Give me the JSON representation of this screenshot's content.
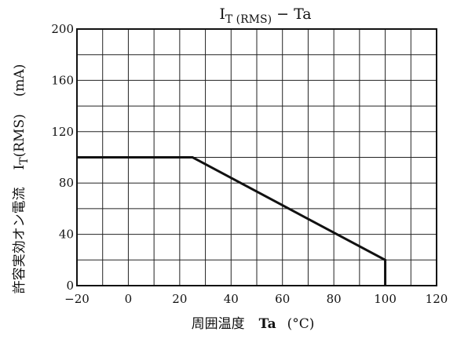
{
  "chart_data": {
    "type": "line",
    "title": {
      "main": "I",
      "sub": "T (RMS)",
      "rest": " − Ta"
    },
    "xlabel": {
      "jp": "周囲温度",
      "symbol": "Ta",
      "unit": "(°C)"
    },
    "ylabel": {
      "jp": "許容実効オン電流",
      "main": "I",
      "sub": "T",
      "rest": "(RMS)",
      "unit": "(mA)"
    },
    "xlim": [
      -20,
      120
    ],
    "ylim": [
      0,
      200
    ],
    "x_ticks": [
      -20,
      0,
      20,
      40,
      60,
      80,
      100,
      120
    ],
    "x_tick_labels": [
      "−20",
      "0",
      "20",
      "40",
      "60",
      "80",
      "100",
      "120"
    ],
    "y_ticks": [
      0,
      40,
      80,
      120,
      160,
      200
    ],
    "y_tick_labels": [
      "0",
      "40",
      "80",
      "120",
      "160",
      "200"
    ],
    "grid": true,
    "grid_x_step": 10,
    "grid_y_step": 20,
    "series": [
      {
        "x": [
          -20,
          25,
          100,
          100
        ],
        "y": [
          100,
          100,
          20,
          0
        ]
      }
    ],
    "colors": {
      "line": "#111111",
      "grid": "#222222",
      "background": "#ffffff"
    }
  }
}
